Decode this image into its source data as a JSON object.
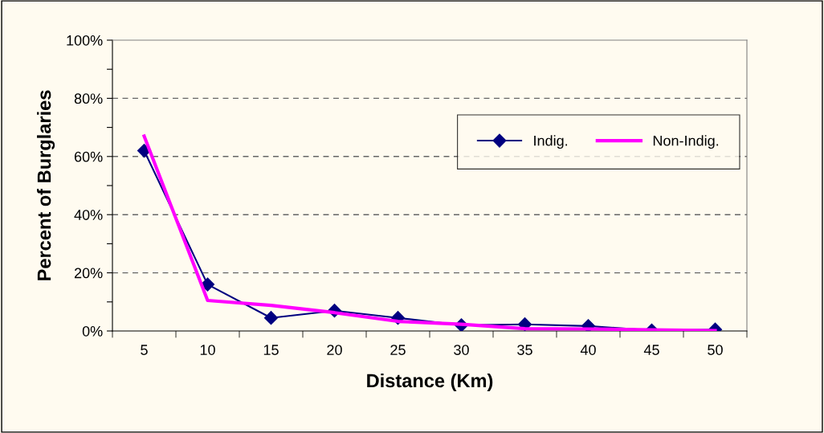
{
  "chart_data": {
    "type": "line",
    "xlabel": "Distance (Km)",
    "ylabel": "Percent of Burglaries",
    "categories": [
      "5",
      "10",
      "15",
      "20",
      "25",
      "30",
      "35",
      "40",
      "45",
      "50"
    ],
    "series": [
      {
        "name": "Indig.",
        "color": "#000080",
        "marker": "diamond",
        "values": [
          62,
          16,
          4.5,
          7,
          4.5,
          2,
          2.3,
          1.7,
          0.2,
          0.5
        ]
      },
      {
        "name": "Non-Indig.",
        "color": "#ff00ff",
        "marker": "none",
        "values": [
          67,
          10.5,
          8.8,
          6.3,
          3.3,
          2.3,
          0.8,
          0.7,
          0.4,
          0.1
        ]
      }
    ],
    "ylim": [
      0,
      100
    ],
    "yticks": [
      {
        "value": 0,
        "label": "0%"
      },
      {
        "value": 10,
        "label": null
      },
      {
        "value": 20,
        "label": "20%"
      },
      {
        "value": 30,
        "label": null
      },
      {
        "value": 40,
        "label": "40%"
      },
      {
        "value": 50,
        "label": null
      },
      {
        "value": 60,
        "label": "60%"
      },
      {
        "value": 70,
        "label": null
      },
      {
        "value": 80,
        "label": "80%"
      },
      {
        "value": 90,
        "label": null
      },
      {
        "value": 100,
        "label": "100%"
      }
    ],
    "grid": "y",
    "legend": "right"
  }
}
